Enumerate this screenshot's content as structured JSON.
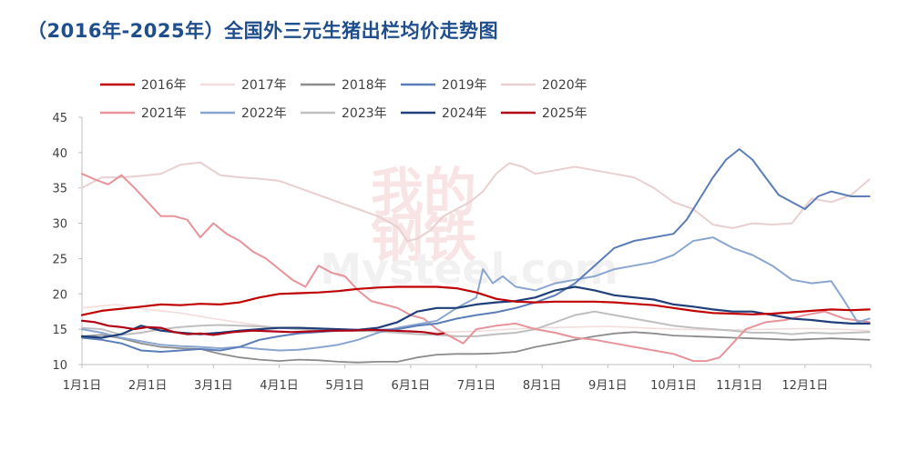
{
  "title": "（2016年-2025年）全国外三元生猪出栏均价走势图",
  "watermark": {
    "cn_top": "我的",
    "cn_bottom": "钢铁",
    "latin": "Mysteel.com"
  },
  "chart_data": {
    "type": "line",
    "title": "（2016年-2025年）全国外三元生猪出栏均价走势图",
    "xlabel": "",
    "ylabel": "",
    "ylim": [
      10,
      45
    ],
    "yticks": [
      10,
      15,
      20,
      25,
      30,
      35,
      40,
      45
    ],
    "xlim": [
      1,
      13
    ],
    "x_tick_labels": [
      "1月1日",
      "2月1日",
      "3月1日",
      "4月1日",
      "5月1日",
      "6月1日",
      "7月1日",
      "8月1日",
      "9月1日",
      "10月1日",
      "11月1日",
      "12月1日"
    ],
    "legend_position": "top",
    "grid": false,
    "series": [
      {
        "name": "2016年",
        "color": "#c00000",
        "width": 2.2,
        "x": [
          1.0,
          1.3,
          1.6,
          1.9,
          2.2,
          2.5,
          2.8,
          3.1,
          3.4,
          3.7,
          4.0,
          4.3,
          4.6,
          4.9,
          5.2,
          5.5,
          5.8,
          6.1,
          6.4,
          6.7,
          7.0,
          7.3,
          7.6,
          7.9,
          8.2,
          8.5,
          8.8,
          9.1,
          9.4,
          9.7,
          10.0,
          10.3,
          10.6,
          10.9,
          11.2,
          11.5,
          11.8,
          12.1,
          12.4,
          12.7,
          12.98
        ],
        "y": [
          17.0,
          17.6,
          17.9,
          18.2,
          18.5,
          18.4,
          18.6,
          18.5,
          18.8,
          19.5,
          20.0,
          20.1,
          20.2,
          20.4,
          20.7,
          20.9,
          21.0,
          21.0,
          21.0,
          20.8,
          20.2,
          19.3,
          18.9,
          18.8,
          18.9,
          18.9,
          18.9,
          18.8,
          18.6,
          18.4,
          18.0,
          17.6,
          17.3,
          17.2,
          17.1,
          17.2,
          17.4,
          17.6,
          17.8,
          17.7,
          17.8
        ]
      },
      {
        "name": "2017年",
        "color": "#f3dcdc",
        "width": 1.6,
        "x": [
          1.0,
          1.5,
          2.0,
          2.5,
          3.0,
          3.5,
          4.0,
          4.5,
          5.0,
          5.5,
          6.0,
          6.5,
          7.0,
          7.5,
          8.0,
          8.5,
          9.0,
          9.5,
          10.0,
          10.5,
          11.0,
          11.5,
          12.0,
          12.5,
          12.98
        ],
        "y": [
          18.0,
          18.5,
          17.8,
          17.3,
          16.5,
          15.8,
          15.2,
          14.9,
          14.8,
          14.7,
          14.6,
          14.6,
          14.7,
          15.0,
          15.2,
          15.3,
          15.4,
          15.2,
          15.0,
          14.9,
          14.9,
          15.0,
          15.1,
          15.0,
          14.8
        ]
      },
      {
        "name": "2018年",
        "color": "#8c8c8c",
        "width": 1.8,
        "x": [
          1.0,
          1.3,
          1.6,
          1.9,
          2.2,
          2.5,
          2.8,
          3.1,
          3.4,
          3.7,
          4.0,
          4.3,
          4.6,
          4.9,
          5.2,
          5.5,
          5.8,
          6.1,
          6.4,
          6.7,
          7.0,
          7.3,
          7.6,
          7.9,
          8.2,
          8.5,
          8.8,
          9.1,
          9.4,
          9.7,
          10.0,
          10.3,
          10.6,
          10.9,
          11.2,
          11.5,
          11.8,
          12.1,
          12.4,
          12.7,
          12.98
        ],
        "y": [
          14.0,
          14.2,
          13.7,
          13.0,
          12.5,
          12.3,
          12.2,
          11.5,
          11.0,
          10.7,
          10.5,
          10.7,
          10.6,
          10.4,
          10.3,
          10.4,
          10.4,
          11.0,
          11.4,
          11.5,
          11.5,
          11.6,
          11.8,
          12.5,
          13.0,
          13.5,
          14.0,
          14.4,
          14.6,
          14.4,
          14.1,
          14.0,
          13.9,
          13.8,
          13.7,
          13.6,
          13.5,
          13.6,
          13.7,
          13.6,
          13.5
        ]
      },
      {
        "name": "2019年",
        "color": "#5b7db8",
        "width": 2.0,
        "x": [
          1.0,
          1.3,
          1.6,
          1.9,
          2.2,
          2.5,
          2.8,
          3.1,
          3.4,
          3.7,
          4.0,
          4.3,
          4.6,
          4.9,
          5.2,
          5.5,
          5.8,
          6.1,
          6.4,
          6.7,
          7.0,
          7.3,
          7.6,
          7.9,
          8.2,
          8.5,
          8.8,
          9.1,
          9.4,
          9.7,
          10.0,
          10.2,
          10.4,
          10.6,
          10.8,
          11.0,
          11.2,
          11.4,
          11.6,
          11.8,
          12.0,
          12.2,
          12.4,
          12.7,
          12.98
        ],
        "y": [
          13.8,
          13.5,
          13.0,
          12.0,
          11.8,
          12.0,
          12.2,
          12.0,
          12.5,
          13.5,
          14.0,
          14.4,
          14.6,
          14.8,
          14.9,
          14.9,
          15.0,
          15.5,
          15.8,
          16.5,
          17.0,
          17.4,
          18.0,
          18.8,
          19.8,
          21.5,
          24.0,
          26.5,
          27.5,
          28.0,
          28.5,
          30.5,
          33.5,
          36.5,
          39.0,
          40.5,
          39.0,
          36.5,
          34.0,
          33.0,
          32.0,
          33.8,
          34.5,
          33.8,
          33.8
        ]
      },
      {
        "name": "2020年",
        "color": "#e8d0d0",
        "width": 2.0,
        "x": [
          1.0,
          1.3,
          1.6,
          1.9,
          2.2,
          2.5,
          2.8,
          3.1,
          3.4,
          3.7,
          4.0,
          4.3,
          4.6,
          4.9,
          5.2,
          5.5,
          5.8,
          5.95,
          6.1,
          6.3,
          6.5,
          6.7,
          6.9,
          7.1,
          7.3,
          7.5,
          7.7,
          7.9,
          8.2,
          8.5,
          8.8,
          9.1,
          9.4,
          9.7,
          10.0,
          10.3,
          10.6,
          10.9,
          11.2,
          11.5,
          11.8,
          12.1,
          12.4,
          12.7,
          12.98
        ],
        "y": [
          35.0,
          36.5,
          36.5,
          36.7,
          37.0,
          38.3,
          38.6,
          36.8,
          36.5,
          36.3,
          36.0,
          35.0,
          34.0,
          33.0,
          32.0,
          31.0,
          29.5,
          27.5,
          27.8,
          29.0,
          31.0,
          32.0,
          33.0,
          34.5,
          37.0,
          38.5,
          38.0,
          37.0,
          37.5,
          38.0,
          37.5,
          37.0,
          36.5,
          35.0,
          33.0,
          32.0,
          29.8,
          29.3,
          30.0,
          29.8,
          30.0,
          33.5,
          33.0,
          34.0,
          36.2
        ]
      },
      {
        "name": "2021年",
        "color": "#e8929a",
        "width": 2.0,
        "x": [
          1.0,
          1.2,
          1.4,
          1.6,
          1.8,
          2.0,
          2.2,
          2.4,
          2.6,
          2.8,
          3.0,
          3.2,
          3.4,
          3.6,
          3.8,
          4.0,
          4.2,
          4.4,
          4.6,
          4.8,
          5.0,
          5.2,
          5.4,
          5.6,
          5.8,
          6.0,
          6.2,
          6.4,
          6.6,
          6.8,
          7.0,
          7.3,
          7.6,
          7.9,
          8.2,
          8.5,
          8.8,
          9.1,
          9.4,
          9.7,
          10.0,
          10.3,
          10.5,
          10.7,
          10.9,
          11.1,
          11.4,
          11.7,
          12.0,
          12.3,
          12.6,
          12.98
        ],
        "y": [
          37.0,
          36.2,
          35.5,
          36.8,
          35.0,
          33.0,
          31.0,
          31.0,
          30.5,
          28.0,
          30.0,
          28.5,
          27.5,
          26.0,
          25.0,
          23.5,
          22.0,
          21.0,
          24.0,
          23.0,
          22.5,
          20.5,
          19.0,
          18.5,
          18.0,
          17.0,
          16.5,
          15.0,
          14.0,
          13.0,
          15.0,
          15.5,
          15.8,
          15.0,
          14.5,
          13.8,
          13.5,
          13.0,
          12.5,
          12.0,
          11.5,
          10.5,
          10.5,
          11.0,
          13.0,
          15.0,
          16.0,
          16.3,
          17.0,
          17.5,
          16.5,
          16.0
        ]
      },
      {
        "name": "2022年",
        "color": "#8aa6d0",
        "width": 2.0,
        "x": [
          1.0,
          1.3,
          1.6,
          1.9,
          2.2,
          2.5,
          2.8,
          3.1,
          3.4,
          3.7,
          4.0,
          4.3,
          4.6,
          4.9,
          5.2,
          5.5,
          5.8,
          6.1,
          6.4,
          6.7,
          7.0,
          7.1,
          7.25,
          7.4,
          7.6,
          7.9,
          8.2,
          8.5,
          8.8,
          9.1,
          9.4,
          9.7,
          10.0,
          10.3,
          10.6,
          10.9,
          11.2,
          11.5,
          11.8,
          12.1,
          12.4,
          12.6,
          12.8,
          12.98
        ],
        "y": [
          15.0,
          14.5,
          13.8,
          13.3,
          12.8,
          12.6,
          12.5,
          12.3,
          12.5,
          12.2,
          12.0,
          12.1,
          12.4,
          12.8,
          13.5,
          14.5,
          15.2,
          15.7,
          16.2,
          18.0,
          19.5,
          23.5,
          21.5,
          22.5,
          21.0,
          20.5,
          21.5,
          22.0,
          22.5,
          23.5,
          24.0,
          24.5,
          25.5,
          27.5,
          28.0,
          26.5,
          25.5,
          24.0,
          22.0,
          21.5,
          21.8,
          19.0,
          16.0,
          16.5
        ]
      },
      {
        "name": "2023年",
        "color": "#bfbfbf",
        "width": 2.0,
        "x": [
          1.0,
          1.3,
          1.6,
          1.9,
          2.2,
          2.5,
          2.8,
          3.1,
          3.4,
          3.7,
          4.0,
          4.3,
          4.6,
          4.9,
          5.2,
          5.5,
          5.8,
          6.1,
          6.4,
          6.7,
          7.0,
          7.3,
          7.6,
          7.9,
          8.2,
          8.5,
          8.8,
          9.1,
          9.4,
          9.7,
          10.0,
          10.3,
          10.6,
          10.9,
          11.2,
          11.5,
          11.8,
          12.1,
          12.4,
          12.7,
          12.98
        ],
        "y": [
          15.2,
          15.0,
          14.2,
          14.5,
          15.0,
          15.3,
          15.5,
          15.6,
          15.5,
          15.4,
          15.2,
          15.0,
          14.9,
          14.8,
          14.8,
          14.7,
          14.5,
          14.3,
          14.2,
          14.0,
          14.0,
          14.3,
          14.5,
          15.0,
          16.0,
          17.0,
          17.5,
          17.0,
          16.5,
          16.0,
          15.5,
          15.2,
          15.0,
          14.8,
          14.5,
          14.5,
          14.3,
          14.5,
          14.4,
          14.5,
          14.6
        ]
      },
      {
        "name": "2024年",
        "color": "#1f3f7a",
        "width": 2.2,
        "x": [
          1.0,
          1.3,
          1.6,
          1.9,
          2.2,
          2.5,
          2.8,
          3.1,
          3.4,
          3.7,
          4.0,
          4.3,
          4.6,
          4.9,
          5.2,
          5.5,
          5.8,
          6.1,
          6.4,
          6.7,
          7.0,
          7.3,
          7.6,
          7.9,
          8.2,
          8.5,
          8.8,
          9.1,
          9.4,
          9.7,
          10.0,
          10.3,
          10.6,
          10.9,
          11.2,
          11.5,
          11.8,
          12.1,
          12.4,
          12.7,
          12.98
        ],
        "y": [
          14.0,
          13.8,
          14.3,
          15.5,
          14.8,
          14.5,
          14.3,
          14.5,
          14.8,
          15.0,
          15.2,
          15.2,
          15.1,
          15.0,
          14.9,
          15.2,
          16.0,
          17.5,
          18.0,
          18.0,
          18.5,
          18.8,
          19.0,
          19.5,
          20.5,
          21.0,
          20.5,
          19.8,
          19.5,
          19.2,
          18.5,
          18.2,
          17.8,
          17.5,
          17.5,
          17.0,
          16.5,
          16.3,
          16.0,
          15.8,
          15.8
        ]
      },
      {
        "name": "2025年",
        "color": "#b00014",
        "width": 2.2,
        "x": [
          1.0,
          1.2,
          1.4,
          1.6,
          1.8,
          2.0,
          2.2,
          2.4,
          2.6,
          2.8,
          3.0,
          3.3,
          3.6,
          3.9,
          4.2,
          4.5,
          4.8,
          5.1,
          5.4,
          5.7,
          6.0,
          6.2,
          6.4,
          6.5
        ],
        "y": [
          16.2,
          16.0,
          15.5,
          15.3,
          15.0,
          15.3,
          15.2,
          14.6,
          14.3,
          14.4,
          14.2,
          14.6,
          14.8,
          14.7,
          14.6,
          14.7,
          14.8,
          14.8,
          14.9,
          14.8,
          14.7,
          14.6,
          14.3,
          14.4
        ]
      }
    ]
  }
}
